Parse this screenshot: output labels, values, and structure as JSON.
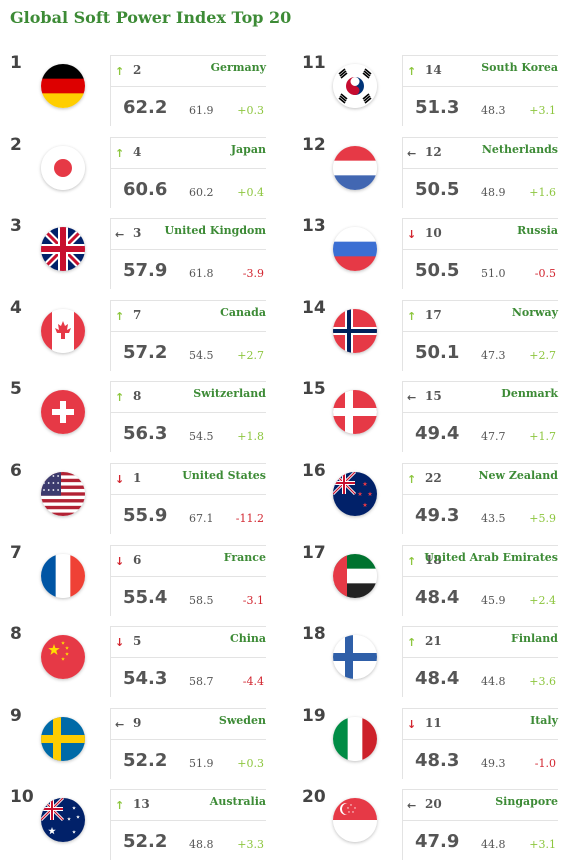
{
  "title": "Global Soft Power Index Top 20",
  "colors": {
    "up": "#8dc63f",
    "down": "#d22630",
    "same": "#555555",
    "positive": "#8dc63f",
    "negative": "#d22630",
    "accent": "#3d8b36"
  },
  "entries": [
    {
      "rank": "1",
      "prev_rank": "2",
      "trend": "up",
      "country": "Germany",
      "score": "62.2",
      "prev_score": "61.9",
      "change": "+0.3",
      "flag": "germany-flag-icon"
    },
    {
      "rank": "2",
      "prev_rank": "4",
      "trend": "up",
      "country": "Japan",
      "score": "60.6",
      "prev_score": "60.2",
      "change": "+0.4",
      "flag": "japan-flag-icon"
    },
    {
      "rank": "3",
      "prev_rank": "3",
      "trend": "same",
      "country": "United Kingdom",
      "score": "57.9",
      "prev_score": "61.8",
      "change": "-3.9",
      "flag": "uk-flag-icon"
    },
    {
      "rank": "4",
      "prev_rank": "7",
      "trend": "up",
      "country": "Canada",
      "score": "57.2",
      "prev_score": "54.5",
      "change": "+2.7",
      "flag": "canada-flag-icon"
    },
    {
      "rank": "5",
      "prev_rank": "8",
      "trend": "up",
      "country": "Switzerland",
      "score": "56.3",
      "prev_score": "54.5",
      "change": "+1.8",
      "flag": "switzerland-flag-icon"
    },
    {
      "rank": "6",
      "prev_rank": "1",
      "trend": "down",
      "country": "United States",
      "score": "55.9",
      "prev_score": "67.1",
      "change": "-11.2",
      "flag": "usa-flag-icon"
    },
    {
      "rank": "7",
      "prev_rank": "6",
      "trend": "down",
      "country": "France",
      "score": "55.4",
      "prev_score": "58.5",
      "change": "-3.1",
      "flag": "france-flag-icon"
    },
    {
      "rank": "8",
      "prev_rank": "5",
      "trend": "down",
      "country": "China",
      "score": "54.3",
      "prev_score": "58.7",
      "change": "-4.4",
      "flag": "china-flag-icon"
    },
    {
      "rank": "9",
      "prev_rank": "9",
      "trend": "same",
      "country": "Sweden",
      "score": "52.2",
      "prev_score": "51.9",
      "change": "+0.3",
      "flag": "sweden-flag-icon"
    },
    {
      "rank": "10",
      "prev_rank": "13",
      "trend": "up",
      "country": "Australia",
      "score": "52.2",
      "prev_score": "48.8",
      "change": "+3.3",
      "flag": "australia-flag-icon"
    },
    {
      "rank": "11",
      "prev_rank": "14",
      "trend": "up",
      "country": "South Korea",
      "score": "51.3",
      "prev_score": "48.3",
      "change": "+3.1",
      "flag": "south-korea-flag-icon"
    },
    {
      "rank": "12",
      "prev_rank": "12",
      "trend": "same",
      "country": "Netherlands",
      "score": "50.5",
      "prev_score": "48.9",
      "change": "+1.6",
      "flag": "netherlands-flag-icon"
    },
    {
      "rank": "13",
      "prev_rank": "10",
      "trend": "down",
      "country": "Russia",
      "score": "50.5",
      "prev_score": "51.0",
      "change": "-0.5",
      "flag": "russia-flag-icon"
    },
    {
      "rank": "14",
      "prev_rank": "17",
      "trend": "up",
      "country": "Norway",
      "score": "50.1",
      "prev_score": "47.3",
      "change": "+2.7",
      "flag": "norway-flag-icon"
    },
    {
      "rank": "15",
      "prev_rank": "15",
      "trend": "same",
      "country": "Denmark",
      "score": "49.4",
      "prev_score": "47.7",
      "change": "+1.7",
      "flag": "denmark-flag-icon"
    },
    {
      "rank": "16",
      "prev_rank": "22",
      "trend": "up",
      "country": "New Zealand",
      "score": "49.3",
      "prev_score": "43.5",
      "change": "+5.9",
      "flag": "new-zealand-flag-icon"
    },
    {
      "rank": "17",
      "prev_rank": "18",
      "trend": "up",
      "country": "United Arab Emirates",
      "score": "48.4",
      "prev_score": "45.9",
      "change": "+2.4",
      "flag": "uae-flag-icon"
    },
    {
      "rank": "18",
      "prev_rank": "21",
      "trend": "up",
      "country": "Finland",
      "score": "48.4",
      "prev_score": "44.8",
      "change": "+3.6",
      "flag": "finland-flag-icon"
    },
    {
      "rank": "19",
      "prev_rank": "11",
      "trend": "down",
      "country": "Italy",
      "score": "48.3",
      "prev_score": "49.3",
      "change": "-1.0",
      "flag": "italy-flag-icon"
    },
    {
      "rank": "20",
      "prev_rank": "20",
      "trend": "same",
      "country": "Singapore",
      "score": "47.9",
      "prev_score": "44.8",
      "change": "+3.1",
      "flag": "singapore-flag-icon"
    }
  ]
}
